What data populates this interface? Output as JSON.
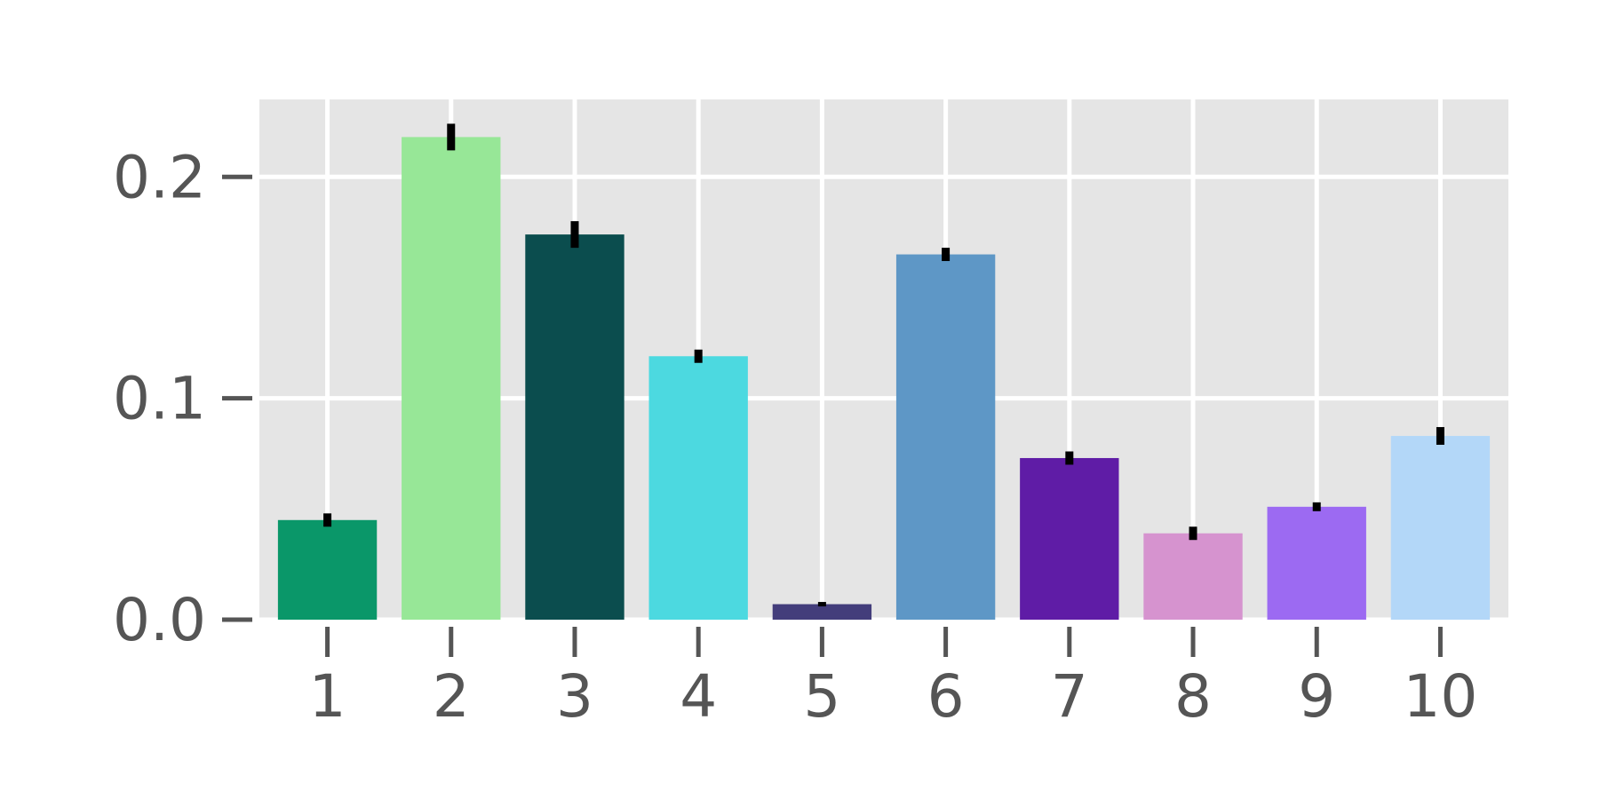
{
  "chart_data": {
    "type": "bar",
    "title": "",
    "xlabel": "",
    "ylabel": "",
    "categories": [
      "1",
      "2",
      "3",
      "4",
      "5",
      "6",
      "7",
      "8",
      "9",
      "10"
    ],
    "values": [
      0.045,
      0.218,
      0.174,
      0.119,
      0.007,
      0.165,
      0.073,
      0.039,
      0.051,
      0.083
    ],
    "errors": [
      0.003,
      0.006,
      0.006,
      0.003,
      0.001,
      0.003,
      0.003,
      0.003,
      0.002,
      0.004
    ],
    "colors": [
      "#0a9769",
      "#97e797",
      "#0b4d4e",
      "#4cd9e0",
      "#433d7b",
      "#5e97c6",
      "#5f1ca6",
      "#d693cf",
      "#9c6af2",
      "#b3d7f8"
    ],
    "ylim": [
      0,
      0.235
    ],
    "yticks": [
      0.0,
      0.1,
      0.2
    ],
    "ytick_labels": [
      "0.0",
      "0.1",
      "0.2"
    ],
    "grid": true,
    "background_color": "#e5e5e5",
    "grid_color": "#ffffff",
    "errorbar_color": "#000000",
    "tick_label_color": "#555555"
  }
}
